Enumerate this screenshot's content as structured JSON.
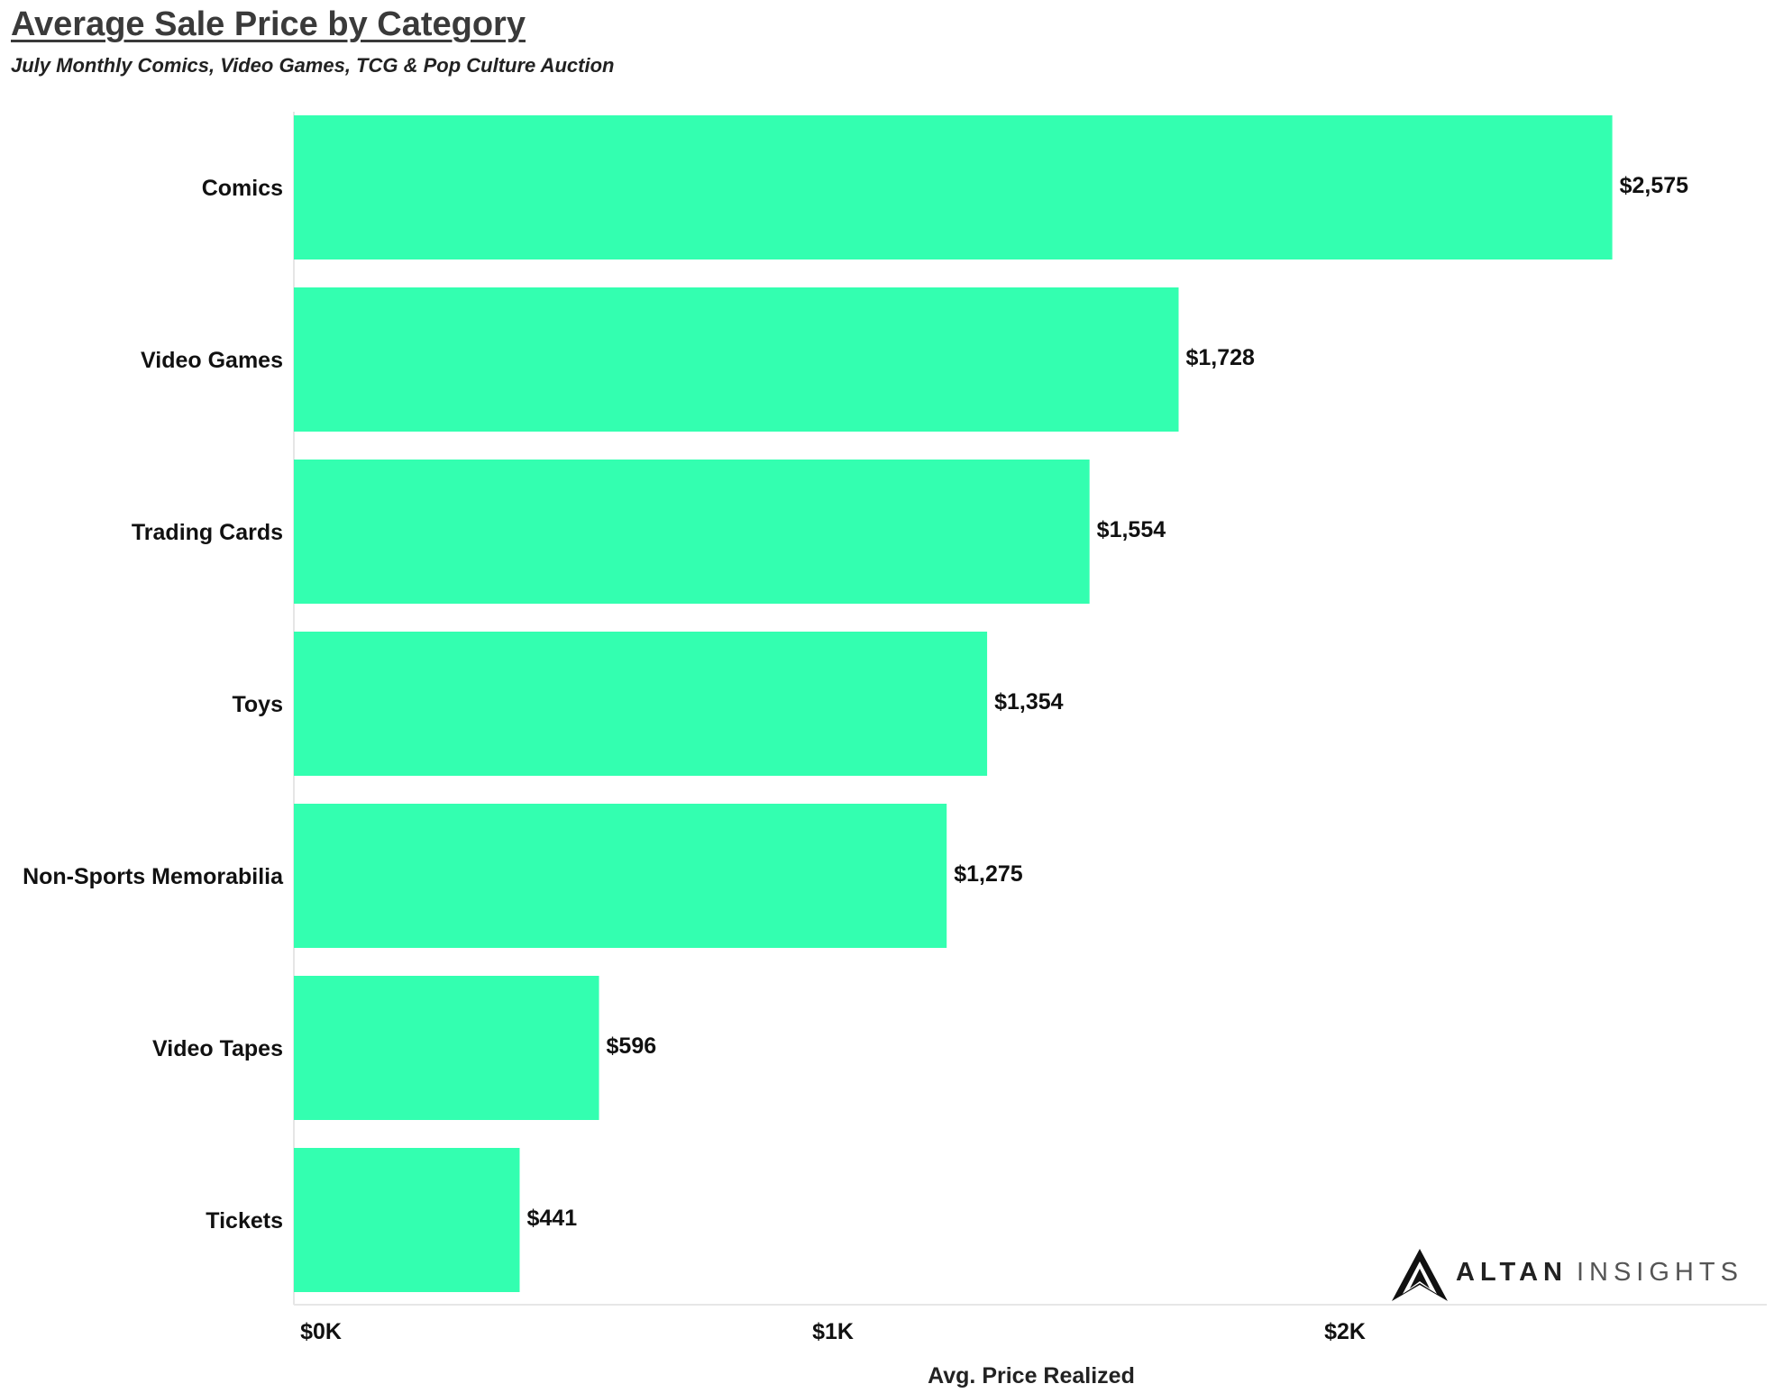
{
  "header": {
    "title": "Average Sale Price by Category",
    "subtitle": "July Monthly Comics, Video Games, TCG & Pop Culture Auction"
  },
  "logo": {
    "word1": "ALTAN",
    "word2": "INSIGHTS",
    "icon": "altan-mountain-icon"
  },
  "colors": {
    "bar": "#33ffb0",
    "axis": "#e6e6e6"
  },
  "chart_data": {
    "type": "bar",
    "orientation": "horizontal",
    "title": "Average Sale Price by Category",
    "subtitle": "July Monthly Comics, Video Games, TCG & Pop Culture Auction",
    "xlabel": "Avg. Price Realized",
    "ylabel": "",
    "categories": [
      "Comics",
      "Video Games",
      "Trading Cards",
      "Toys",
      "Non-Sports Memorabilia",
      "Video Tapes",
      "Tickets"
    ],
    "values": [
      2575,
      1728,
      1554,
      1354,
      1275,
      596,
      441
    ],
    "value_labels": [
      "$2,575",
      "$1,728",
      "$1,554",
      "$1,354",
      "$1,275",
      "$596",
      "$441"
    ],
    "xticks": [
      0,
      1000,
      2000
    ],
    "xtick_labels": [
      "$0K",
      "$1K",
      "$2K"
    ],
    "xlim": [
      0,
      2875
    ],
    "grid": false,
    "legend": "none"
  }
}
